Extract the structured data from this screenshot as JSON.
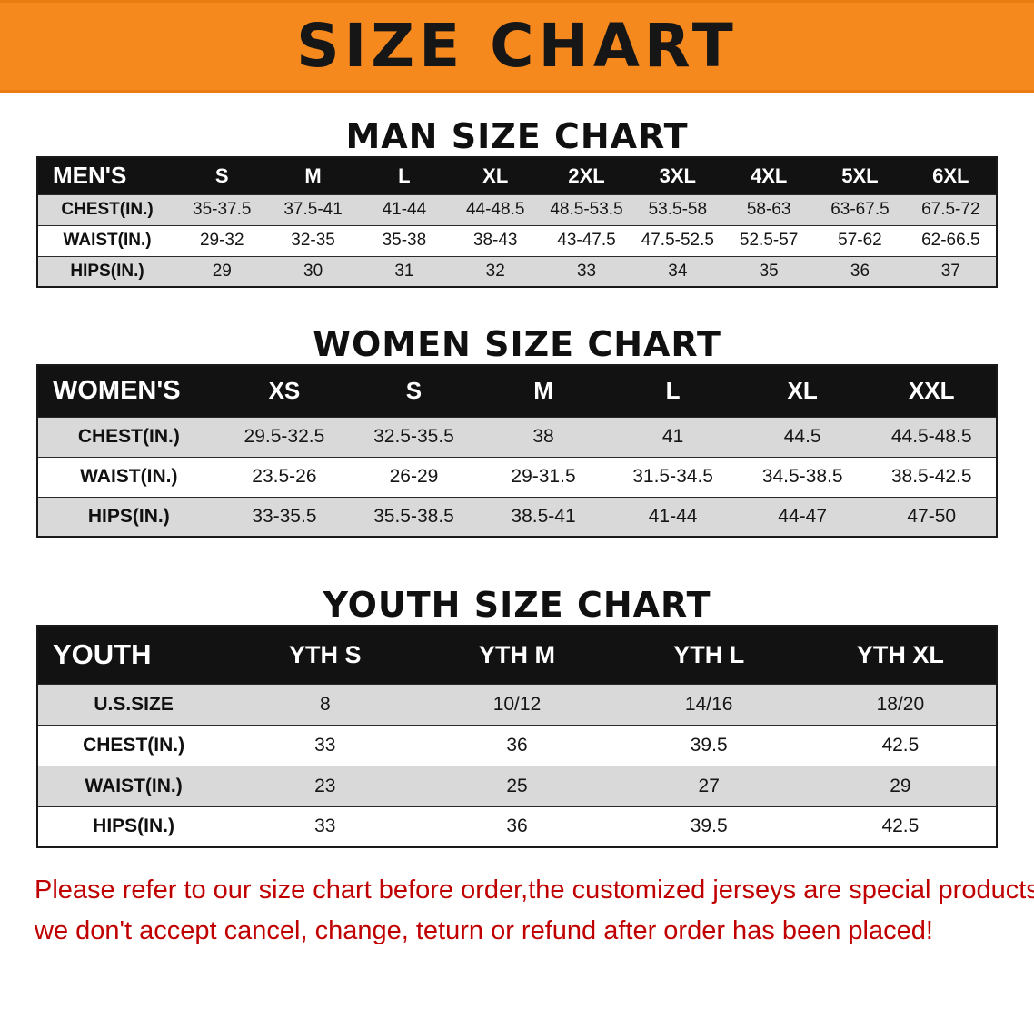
{
  "banner": {
    "title": "SIZE CHART",
    "bg_color": "#F6891D",
    "title_color": "#161616"
  },
  "sections": [
    {
      "id": "men",
      "heading": "MAN SIZE CHART",
      "table": {
        "header": [
          "MEN'S",
          "S",
          "M",
          "L",
          "XL",
          "2XL",
          "3XL",
          "4XL",
          "5XL",
          "6XL"
        ],
        "rows": [
          [
            "CHEST(IN.)",
            "35-37.5",
            "37.5-41",
            "41-44",
            "44-48.5",
            "48.5-53.5",
            "53.5-58",
            "58-63",
            "63-67.5",
            "67.5-72"
          ],
          [
            "WAIST(IN.)",
            "29-32",
            "32-35",
            "35-38",
            "38-43",
            "43-47.5",
            "47.5-52.5",
            "52.5-57",
            "57-62",
            "62-66.5"
          ],
          [
            "HIPS(IN.)",
            "29",
            "30",
            "31",
            "32",
            "33",
            "34",
            "35",
            "36",
            "37"
          ]
        ]
      }
    },
    {
      "id": "women",
      "heading": "WOMEN SIZE CHART",
      "table": {
        "header": [
          "WOMEN'S",
          "XS",
          "S",
          "M",
          "L",
          "XL",
          "XXL"
        ],
        "rows": [
          [
            "CHEST(IN.)",
            "29.5-32.5",
            "32.5-35.5",
            "38",
            "41",
            "44.5",
            "44.5-48.5"
          ],
          [
            "WAIST(IN.)",
            "23.5-26",
            "26-29",
            "29-31.5",
            "31.5-34.5",
            "34.5-38.5",
            "38.5-42.5"
          ],
          [
            "HIPS(IN.)",
            "33-35.5",
            "35.5-38.5",
            "38.5-41",
            "41-44",
            "44-47",
            "47-50"
          ]
        ]
      }
    },
    {
      "id": "youth",
      "heading": "YOUTH SIZE CHART",
      "table": {
        "header": [
          "YOUTH",
          "YTH S",
          "YTH M",
          "YTH L",
          "YTH XL"
        ],
        "rows": [
          [
            "U.S.SIZE",
            "8",
            "10/12",
            "14/16",
            "18/20"
          ],
          [
            "CHEST(IN.)",
            "33",
            "36",
            "39.5",
            "42.5"
          ],
          [
            "WAIST(IN.)",
            "23",
            "25",
            "27",
            "29"
          ],
          [
            "HIPS(IN.)",
            "33",
            "36",
            "39.5",
            "42.5"
          ]
        ]
      }
    }
  ],
  "footer": {
    "text_color": "#C00000",
    "lines": [
      "Please refer to our size chart before order,the customized jerseys are special products,",
      "we don't accept cancel, change, teturn or refund after order has been placed!"
    ]
  }
}
